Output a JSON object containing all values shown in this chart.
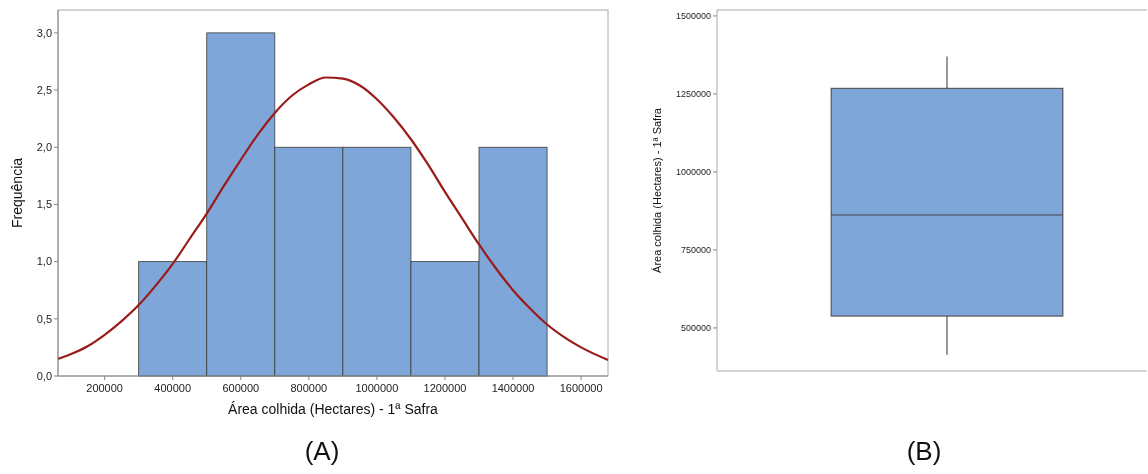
{
  "chart_data": [
    {
      "type": "histogram",
      "xlabel": "Área colhida (Hectares) - 1ª Safra",
      "ylabel": "Frequência",
      "annotations": [
        "(A)"
      ],
      "bins": [
        300000,
        500000,
        700000,
        900000,
        1100000,
        1300000,
        1500000
      ],
      "values": [
        1,
        3,
        2,
        2,
        1,
        2
      ],
      "color": "#7ea6d9",
      "series": [
        {
          "type": "line",
          "color": "#9b1b1b",
          "x": [
            63000,
            100000,
            150000,
            200000,
            250000,
            300000,
            350000,
            400000,
            450000,
            500000,
            550000,
            600000,
            650000,
            700000,
            750000,
            800000,
            850000,
            900000,
            950000,
            1000000,
            1050000,
            1100000,
            1150000,
            1200000,
            1250000,
            1300000,
            1350000,
            1400000,
            1450000,
            1500000,
            1550000,
            1600000,
            1679000
          ],
          "values": [
            0.15,
            0.19,
            0.26,
            0.36,
            0.48,
            0.62,
            0.79,
            0.98,
            1.2,
            1.42,
            1.66,
            1.89,
            2.11,
            2.3,
            2.45,
            2.55,
            2.61,
            2.6,
            2.54,
            2.42,
            2.26,
            2.07,
            1.85,
            1.61,
            1.38,
            1.15,
            0.94,
            0.75,
            0.59,
            0.45,
            0.34,
            0.25,
            0.14
          ]
        }
      ],
      "xlim": [
        63000,
        1679000
      ],
      "xticks": [
        200000,
        400000,
        600000,
        800000,
        1000000,
        1200000,
        1400000,
        1600000
      ],
      "ylim": [
        0,
        3.2
      ],
      "yticks": [
        {
          "value": 0,
          "label": "0,0"
        },
        {
          "value": 0.5,
          "label": "0,5"
        },
        {
          "value": 1,
          "label": "1,0"
        },
        {
          "value": 1.5,
          "label": "1,5"
        },
        {
          "value": 2,
          "label": "2,0"
        },
        {
          "value": 2.5,
          "label": "2,5"
        },
        {
          "value": 3,
          "label": "3,0"
        }
      ],
      "grid": false
    },
    {
      "type": "box",
      "ylabel": "Área colhida (Hectares) - 1ª Safra",
      "annotations": [
        "(B)"
      ],
      "categories": [
        null
      ],
      "color": "#7ea6d9",
      "boxes": [
        {
          "low": 414000,
          "q1": 538000,
          "median": 862000,
          "q3": 1268000,
          "high": 1370000
        }
      ],
      "ylim": [
        362000,
        1519000
      ],
      "yticks": [
        500000,
        750000,
        1000000,
        1250000,
        1500000
      ],
      "grid": false
    }
  ]
}
